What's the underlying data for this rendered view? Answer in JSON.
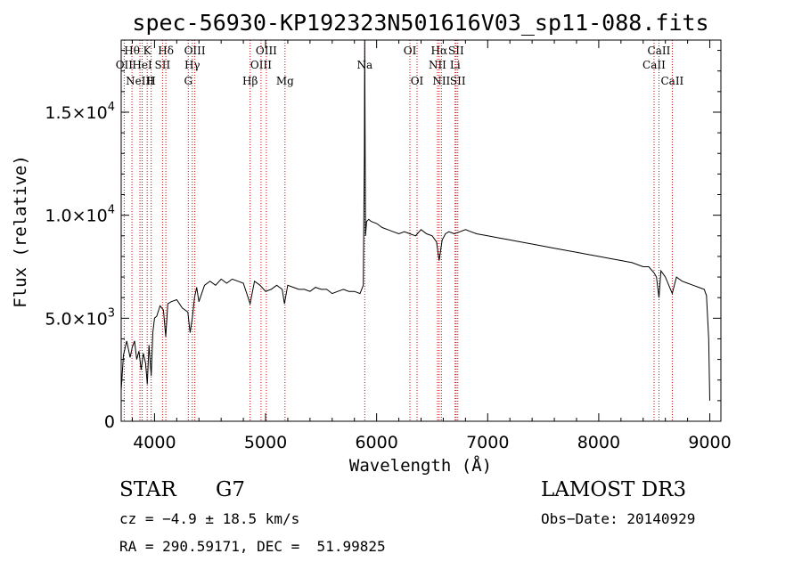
{
  "chart_data": {
    "type": "line",
    "title": "spec-56930-KP192323N501616V03_sp11-088.fits",
    "xlabel": "Wavelength (Å)",
    "ylabel": "Flux (relative)",
    "xlim": [
      3700,
      9100
    ],
    "ylim": [
      0,
      18500
    ],
    "x_ticks": [
      4000,
      5000,
      6000,
      7000,
      8000,
      9000
    ],
    "x_tick_labels": [
      "4000",
      "5000",
      "6000",
      "7000",
      "8000",
      "9000"
    ],
    "y_ticks": [
      0,
      5000,
      10000,
      15000
    ],
    "y_tick_labels": [
      {
        "mantissa": "0",
        "exp": ""
      },
      {
        "mantissa": "5.0×10",
        "exp": "3"
      },
      {
        "mantissa": "1.0×10",
        "exp": "4"
      },
      {
        "mantissa": "1.5×10",
        "exp": "4"
      }
    ],
    "series": [
      {
        "name": "spectrum",
        "x": [
          3700,
          3720,
          3750,
          3780,
          3800,
          3820,
          3840,
          3860,
          3880,
          3900,
          3920,
          3935,
          3950,
          3970,
          3985,
          4000,
          4020,
          4050,
          4080,
          4101,
          4120,
          4150,
          4200,
          4250,
          4300,
          4320,
          4340,
          4360,
          4380,
          4400,
          4450,
          4500,
          4550,
          4600,
          4650,
          4700,
          4750,
          4800,
          4861,
          4900,
          4950,
          5000,
          5050,
          5100,
          5150,
          5170,
          5200,
          5250,
          5300,
          5350,
          5400,
          5450,
          5500,
          5550,
          5600,
          5650,
          5700,
          5750,
          5800,
          5850,
          5880,
          5890,
          5893,
          5896,
          5900,
          5910,
          5930,
          5950,
          6000,
          6050,
          6100,
          6150,
          6200,
          6250,
          6300,
          6350,
          6400,
          6450,
          6500,
          6540,
          6563,
          6590,
          6620,
          6650,
          6700,
          6750,
          6800,
          6850,
          6900,
          7000,
          7100,
          7200,
          7300,
          7400,
          7500,
          7600,
          7700,
          7800,
          7900,
          8000,
          8100,
          8200,
          8300,
          8400,
          8450,
          8498,
          8520,
          8542,
          8560,
          8600,
          8662,
          8700,
          8750,
          8800,
          8850,
          8900,
          8950,
          8970,
          8990,
          9000
        ],
        "values": [
          1500,
          3200,
          3900,
          3100,
          3600,
          3900,
          3000,
          3400,
          2500,
          3300,
          2800,
          1800,
          3700,
          2200,
          4300,
          5000,
          5100,
          5600,
          5400,
          4100,
          5700,
          5800,
          5900,
          5500,
          5300,
          4300,
          5000,
          6000,
          6500,
          5800,
          6600,
          6800,
          6600,
          6900,
          6700,
          6900,
          6800,
          6700,
          5700,
          6800,
          6600,
          6300,
          6400,
          6600,
          6400,
          5700,
          6600,
          6500,
          6400,
          6400,
          6300,
          6500,
          6400,
          6400,
          6200,
          6300,
          6400,
          6300,
          6300,
          6200,
          6600,
          13000,
          18500,
          14000,
          9000,
          9700,
          9800,
          9700,
          9600,
          9400,
          9300,
          9200,
          9100,
          9200,
          9100,
          9000,
          9300,
          9100,
          9000,
          8700,
          7800,
          8800,
          9100,
          9200,
          9100,
          9200,
          9300,
          9200,
          9100,
          9000,
          8900,
          8800,
          8700,
          8600,
          8500,
          8400,
          8300,
          8200,
          8100,
          8000,
          7900,
          7800,
          7700,
          7500,
          7500,
          7200,
          7000,
          6000,
          7300,
          7000,
          6200,
          7000,
          6800,
          6700,
          6600,
          6500,
          6400,
          6100,
          4000,
          1000
        ]
      }
    ],
    "emission_lines": [
      {
        "wl": 3727,
        "label": "OII",
        "row": 2
      },
      {
        "wl": 3797,
        "label": "Hθ",
        "row": 1
      },
      {
        "wl": 3869,
        "label": "NeIII",
        "row": 3
      },
      {
        "wl": 3889,
        "label": "HeI",
        "row": 2
      },
      {
        "wl": 3934,
        "label": "K",
        "row": 1
      },
      {
        "wl": 3970,
        "label": "H",
        "row": 3
      },
      {
        "wl": 4072,
        "label": "SII",
        "row": 2
      },
      {
        "wl": 4102,
        "label": "Hδ",
        "row": 1
      },
      {
        "wl": 4304,
        "label": "G",
        "row": 3
      },
      {
        "wl": 4340,
        "label": "Hγ",
        "row": 2
      },
      {
        "wl": 4363,
        "label": "OIII",
        "row": 1
      },
      {
        "wl": 4861,
        "label": "Hβ",
        "row": 3
      },
      {
        "wl": 4959,
        "label": "OIII",
        "row": 2
      },
      {
        "wl": 5007,
        "label": "OIII",
        "row": 1
      },
      {
        "wl": 5175,
        "label": "Mg",
        "row": 3
      },
      {
        "wl": 5893,
        "label": "Na",
        "row": 2
      },
      {
        "wl": 6300,
        "label": "OI",
        "row": 1
      },
      {
        "wl": 6364,
        "label": "OI",
        "row": 3
      },
      {
        "wl": 6548,
        "label": "NII",
        "row": 2
      },
      {
        "wl": 6563,
        "label": "Hα",
        "row": 1
      },
      {
        "wl": 6583,
        "label": "NII",
        "row": 3
      },
      {
        "wl": 6707,
        "label": "Li",
        "row": 2
      },
      {
        "wl": 6716,
        "label": "SII",
        "row": 1
      },
      {
        "wl": 6731,
        "label": "SII",
        "row": 3
      },
      {
        "wl": 8498,
        "label": "CaII",
        "row": 2
      },
      {
        "wl": 8542,
        "label": "CaII",
        "row": 1
      },
      {
        "wl": 8662,
        "label": "CaII",
        "row": 3
      }
    ]
  },
  "info": {
    "class": "STAR",
    "subclass": "G7",
    "survey": "LAMOST DR3",
    "cz": "cz = −4.9 ± 18.5 km/s",
    "obs_date": "Obs−Date: 20140929",
    "coords": "RA = 290.59171, DEC =  51.99825"
  },
  "colors": {
    "line_marker": "#cc0000",
    "spectrum": "#000000",
    "axis": "#000000"
  }
}
